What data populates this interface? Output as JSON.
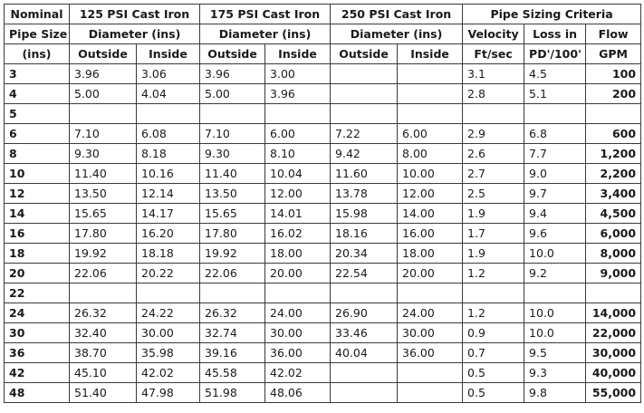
{
  "header": {
    "row1": {
      "nominal": "Nominal",
      "group_125": "125 PSI Cast Iron",
      "group_175": "175 PSI Cast Iron",
      "group_250": "250 PSI Cast Iron",
      "criteria": "Pipe Sizing Criteria"
    },
    "row2": {
      "pipe_size": "Pipe Size",
      "diam_125": "Diameter (ins)",
      "diam_175": "Diameter (ins)",
      "diam_250": "Diameter (ins)",
      "velocity": "Velocity",
      "loss": "Loss in",
      "flow": "Flow"
    },
    "row3": {
      "ins": "(ins)",
      "outside_125": "Outside",
      "inside_125": "Inside",
      "outside_175": "Outside",
      "inside_175": "Inside",
      "outside_250": "Outside",
      "inside_250": "Inside",
      "velocity_unit": "Ft/sec",
      "loss_unit": "PD'/100'",
      "flow_unit": "GPM"
    }
  },
  "rows": [
    {
      "size": "3",
      "o125": "3.96",
      "i125": "3.06",
      "o175": "3.96",
      "i175": "3.00",
      "o250": "",
      "i250": "",
      "vel": "3.1",
      "loss": "4.5",
      "flow": "100"
    },
    {
      "size": "4",
      "o125": "5.00",
      "i125": "4.04",
      "o175": "5.00",
      "i175": "3.96",
      "o250": "",
      "i250": "",
      "vel": "2.8",
      "loss": "5.1",
      "flow": "200"
    },
    {
      "size": "5",
      "o125": "",
      "i125": "",
      "o175": "",
      "i175": "",
      "o250": "",
      "i250": "",
      "vel": "",
      "loss": "",
      "flow": ""
    },
    {
      "size": "6",
      "o125": "7.10",
      "i125": "6.08",
      "o175": "7.10",
      "i175": "6.00",
      "o250": "7.22",
      "i250": "6.00",
      "vel": "2.9",
      "loss": "6.8",
      "flow": "600"
    },
    {
      "size": "8",
      "o125": "9.30",
      "i125": "8.18",
      "o175": "9.30",
      "i175": "8.10",
      "o250": "9.42",
      "i250": "8.00",
      "vel": "2.6",
      "loss": "7.7",
      "flow": "1,200"
    },
    {
      "size": "10",
      "o125": "11.40",
      "i125": "10.16",
      "o175": "11.40",
      "i175": "10.04",
      "o250": "11.60",
      "i250": "10.00",
      "vel": "2.7",
      "loss": "9.0",
      "flow": "2,200"
    },
    {
      "size": "12",
      "o125": "13.50",
      "i125": "12.14",
      "o175": "13.50",
      "i175": "12.00",
      "o250": "13.78",
      "i250": "12.00",
      "vel": "2.5",
      "loss": "9.7",
      "flow": "3,400"
    },
    {
      "size": "14",
      "o125": "15.65",
      "i125": "14.17",
      "o175": "15.65",
      "i175": "14.01",
      "o250": "15.98",
      "i250": "14.00",
      "vel": "1.9",
      "loss": "9.4",
      "flow": "4,500"
    },
    {
      "size": "16",
      "o125": "17.80",
      "i125": "16.20",
      "o175": "17.80",
      "i175": "16.02",
      "o250": "18.16",
      "i250": "16.00",
      "vel": "1.7",
      "loss": "9.6",
      "flow": "6,000"
    },
    {
      "size": "18",
      "o125": "19.92",
      "i125": "18.18",
      "o175": "19.92",
      "i175": "18.00",
      "o250": "20.34",
      "i250": "18.00",
      "vel": "1.9",
      "loss": "10.0",
      "flow": "8,000"
    },
    {
      "size": "20",
      "o125": "22.06",
      "i125": "20.22",
      "o175": "22.06",
      "i175": "20.00",
      "o250": "22.54",
      "i250": "20.00",
      "vel": "1.2",
      "loss": "9.2",
      "flow": "9,000"
    },
    {
      "size": "22",
      "o125": "",
      "i125": "",
      "o175": "",
      "i175": "",
      "o250": "",
      "i250": "",
      "vel": "",
      "loss": "",
      "flow": ""
    },
    {
      "size": "24",
      "o125": "26.32",
      "i125": "24.22",
      "o175": "26.32",
      "i175": "24.00",
      "o250": "26.90",
      "i250": "24.00",
      "vel": "1.2",
      "loss": "10.0",
      "flow": "14,000"
    },
    {
      "size": "30",
      "o125": "32.40",
      "i125": "30.00",
      "o175": "32.74",
      "i175": "30.00",
      "o250": "33.46",
      "i250": "30.00",
      "vel": "0.9",
      "loss": "10.0",
      "flow": "22,000"
    },
    {
      "size": "36",
      "o125": "38.70",
      "i125": "35.98",
      "o175": "39.16",
      "i175": "36.00",
      "o250": "40.04",
      "i250": "36.00",
      "vel": "0.7",
      "loss": "9.5",
      "flow": "30,000"
    },
    {
      "size": "42",
      "o125": "45.10",
      "i125": "42.02",
      "o175": "45.58",
      "i175": "42.02",
      "o250": "",
      "i250": "",
      "vel": "0.5",
      "loss": "9.3",
      "flow": "40,000"
    },
    {
      "size": "48",
      "o125": "51.40",
      "i125": "47.98",
      "o175": "51.98",
      "i175": "48.06",
      "o250": "",
      "i250": "",
      "vel": "0.5",
      "loss": "9.8",
      "flow": "55,000"
    }
  ]
}
